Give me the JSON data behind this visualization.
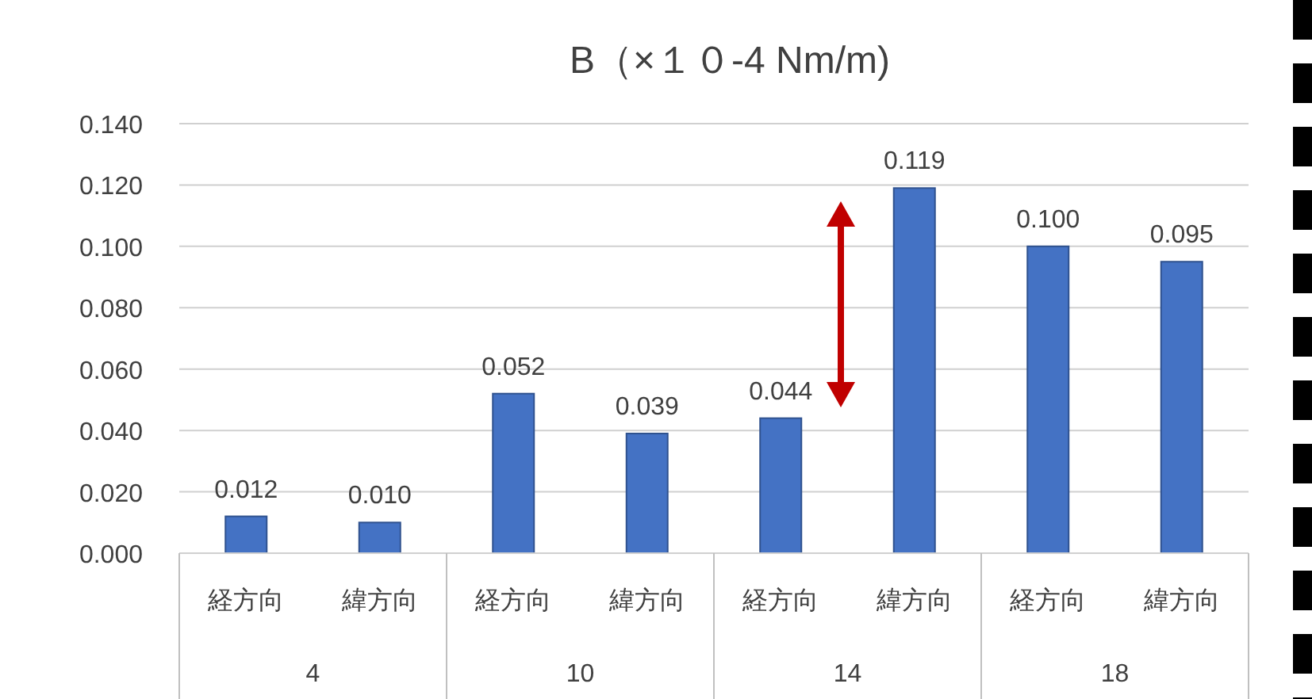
{
  "chart_data": {
    "type": "bar",
    "title": "B（×１０-4 Nm/m)",
    "categories": [
      "経方向",
      "緯方向",
      "経方向",
      "緯方向",
      "経方向",
      "緯方向",
      "経方向",
      "緯方向"
    ],
    "values": [
      0.012,
      0.01,
      0.052,
      0.039,
      0.044,
      0.119,
      0.1,
      0.095
    ],
    "color": "#4472c4",
    "ylim": [
      0,
      0.14
    ],
    "yticks": [
      {
        "value": 0,
        "label": "0.000"
      },
      {
        "value": 0.02,
        "label": "0.020"
      },
      {
        "value": 0.04,
        "label": "0.040"
      },
      {
        "value": 0.06,
        "label": "0.060"
      },
      {
        "value": 0.08,
        "label": "0.080"
      },
      {
        "value": 0.1,
        "label": "0.100"
      },
      {
        "value": 0.12,
        "label": "0.120"
      },
      {
        "value": 0.14,
        "label": "0.140"
      }
    ],
    "value_labels": [
      "0.012",
      "0.010",
      "0.052",
      "0.039",
      "0.044",
      "0.119",
      "0.100",
      "0.095"
    ],
    "annotations": [
      "4",
      "10",
      "14",
      "18"
    ],
    "grid": "y"
  }
}
